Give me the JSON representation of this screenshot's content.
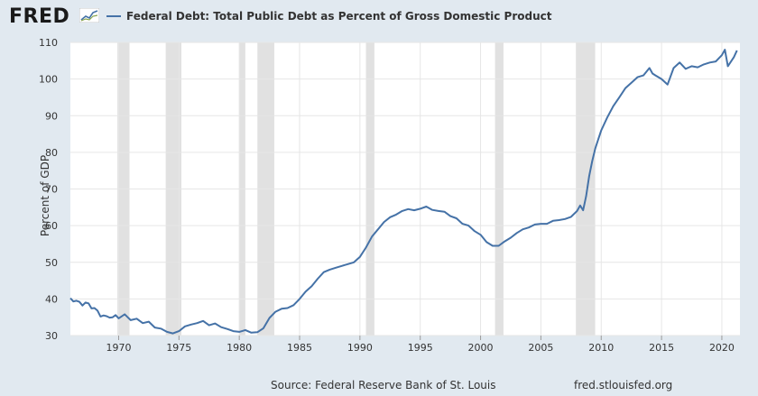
{
  "header": {
    "logo_text": "FRED",
    "logo_icon": "line-chart-icon",
    "legend_label": "Federal Debt: Total Public Debt as Percent of Gross Domestic Product"
  },
  "footer": {
    "source": "Source: Federal Reserve Bank of St. Louis",
    "url": "fred.stlouisfed.org"
  },
  "colors": {
    "series": "#4572a7",
    "recession": "#e1e1e1",
    "background": "#e1e9f0",
    "plot": "#ffffff",
    "grid": "#e6e6e6"
  },
  "chart_data": {
    "type": "line",
    "title": "",
    "xlabel": "",
    "ylabel": "Percent of GDP",
    "xlim": [
      1966.0,
      2021.5
    ],
    "ylim": [
      30,
      110
    ],
    "x_ticks": [
      1970,
      1975,
      1980,
      1985,
      1990,
      1995,
      2000,
      2005,
      2010,
      2015,
      2020
    ],
    "y_ticks": [
      30,
      40,
      50,
      60,
      70,
      80,
      90,
      100,
      110
    ],
    "grid": true,
    "legend_position": "top",
    "recessions": [
      [
        1969.9,
        1970.9
      ],
      [
        1973.9,
        1975.2
      ],
      [
        1980.0,
        1980.5
      ],
      [
        1981.5,
        1982.9
      ],
      [
        1990.5,
        1991.2
      ],
      [
        2001.2,
        2001.9
      ],
      [
        2007.9,
        2009.5
      ]
    ],
    "series": [
      {
        "name": "Federal Debt: Total Public Debt as Percent of Gross Domestic Product",
        "x": [
          1966.0,
          1966.25,
          1966.5,
          1966.75,
          1967.0,
          1967.25,
          1967.5,
          1967.75,
          1968.0,
          1968.25,
          1968.5,
          1968.75,
          1969.0,
          1969.25,
          1969.5,
          1969.75,
          1970.0,
          1970.5,
          1970.75,
          1971.0,
          1971.5,
          1972.0,
          1972.5,
          1973.0,
          1973.5,
          1974.0,
          1974.5,
          1975.0,
          1975.5,
          1976.0,
          1976.5,
          1977.0,
          1977.5,
          1978.0,
          1978.5,
          1979.0,
          1979.5,
          1980.0,
          1980.5,
          1981.0,
          1981.5,
          1982.0,
          1982.5,
          1983.0,
          1983.5,
          1984.0,
          1984.5,
          1985.0,
          1985.5,
          1986.0,
          1986.5,
          1987.0,
          1987.5,
          1988.0,
          1988.5,
          1989.0,
          1989.5,
          1990.0,
          1990.5,
          1991.0,
          1991.5,
          1992.0,
          1992.5,
          1993.0,
          1993.5,
          1994.0,
          1994.5,
          1995.0,
          1995.5,
          1996.0,
          1996.5,
          1997.0,
          1997.5,
          1998.0,
          1998.5,
          1999.0,
          1999.5,
          2000.0,
          2000.5,
          2001.0,
          2001.5,
          2002.0,
          2002.5,
          2003.0,
          2003.5,
          2004.0,
          2004.5,
          2005.0,
          2005.5,
          2006.0,
          2006.5,
          2007.0,
          2007.5,
          2008.0,
          2008.25,
          2008.5,
          2008.75,
          2009.0,
          2009.25,
          2009.5,
          2009.75,
          2010.0,
          2010.5,
          2011.0,
          2011.5,
          2012.0,
          2012.5,
          2013.0,
          2013.5,
          2014.0,
          2014.25,
          2014.5,
          2015.0,
          2015.5,
          2016.0,
          2016.5,
          2017.0,
          2017.5,
          2018.0,
          2018.5,
          2019.0,
          2019.5,
          2020.0,
          2020.25,
          2020.5,
          2021.0,
          2021.25
        ],
        "values": [
          40.2,
          39.3,
          39.5,
          39.2,
          38.2,
          39.0,
          38.8,
          37.4,
          37.5,
          36.8,
          35.2,
          35.5,
          35.3,
          34.9,
          35.0,
          35.6,
          34.7,
          35.8,
          35.0,
          34.2,
          34.6,
          33.4,
          33.8,
          32.2,
          31.9,
          31.0,
          30.6,
          31.2,
          32.5,
          33.0,
          33.4,
          34.0,
          32.8,
          33.3,
          32.3,
          31.8,
          31.2,
          31.0,
          31.5,
          30.8,
          30.9,
          32.0,
          34.8,
          36.5,
          37.3,
          37.5,
          38.3,
          40.0,
          42.0,
          43.5,
          45.5,
          47.3,
          48.0,
          48.5,
          49.0,
          49.5,
          50.0,
          51.5,
          54.0,
          57.0,
          59.0,
          61.0,
          62.3,
          63.0,
          64.0,
          64.5,
          64.2,
          64.6,
          65.2,
          64.3,
          64.0,
          63.8,
          62.6,
          62.0,
          60.5,
          60.0,
          58.5,
          57.5,
          55.5,
          54.5,
          54.5,
          55.7,
          56.7,
          58.0,
          59.0,
          59.5,
          60.3,
          60.5,
          60.5,
          61.3,
          61.5,
          61.8,
          62.4,
          64.0,
          65.5,
          64.2,
          68.0,
          73.5,
          77.5,
          81.0,
          83.5,
          86.0,
          89.5,
          92.6,
          95.0,
          97.5,
          99.0,
          100.5,
          101.0,
          103.0,
          101.5,
          101.0,
          100.0,
          98.5,
          103.0,
          104.5,
          102.8,
          103.5,
          103.2,
          104.0,
          104.5,
          104.8,
          106.5,
          108.0,
          103.5,
          106.0,
          107.8
        ]
      }
    ]
  }
}
